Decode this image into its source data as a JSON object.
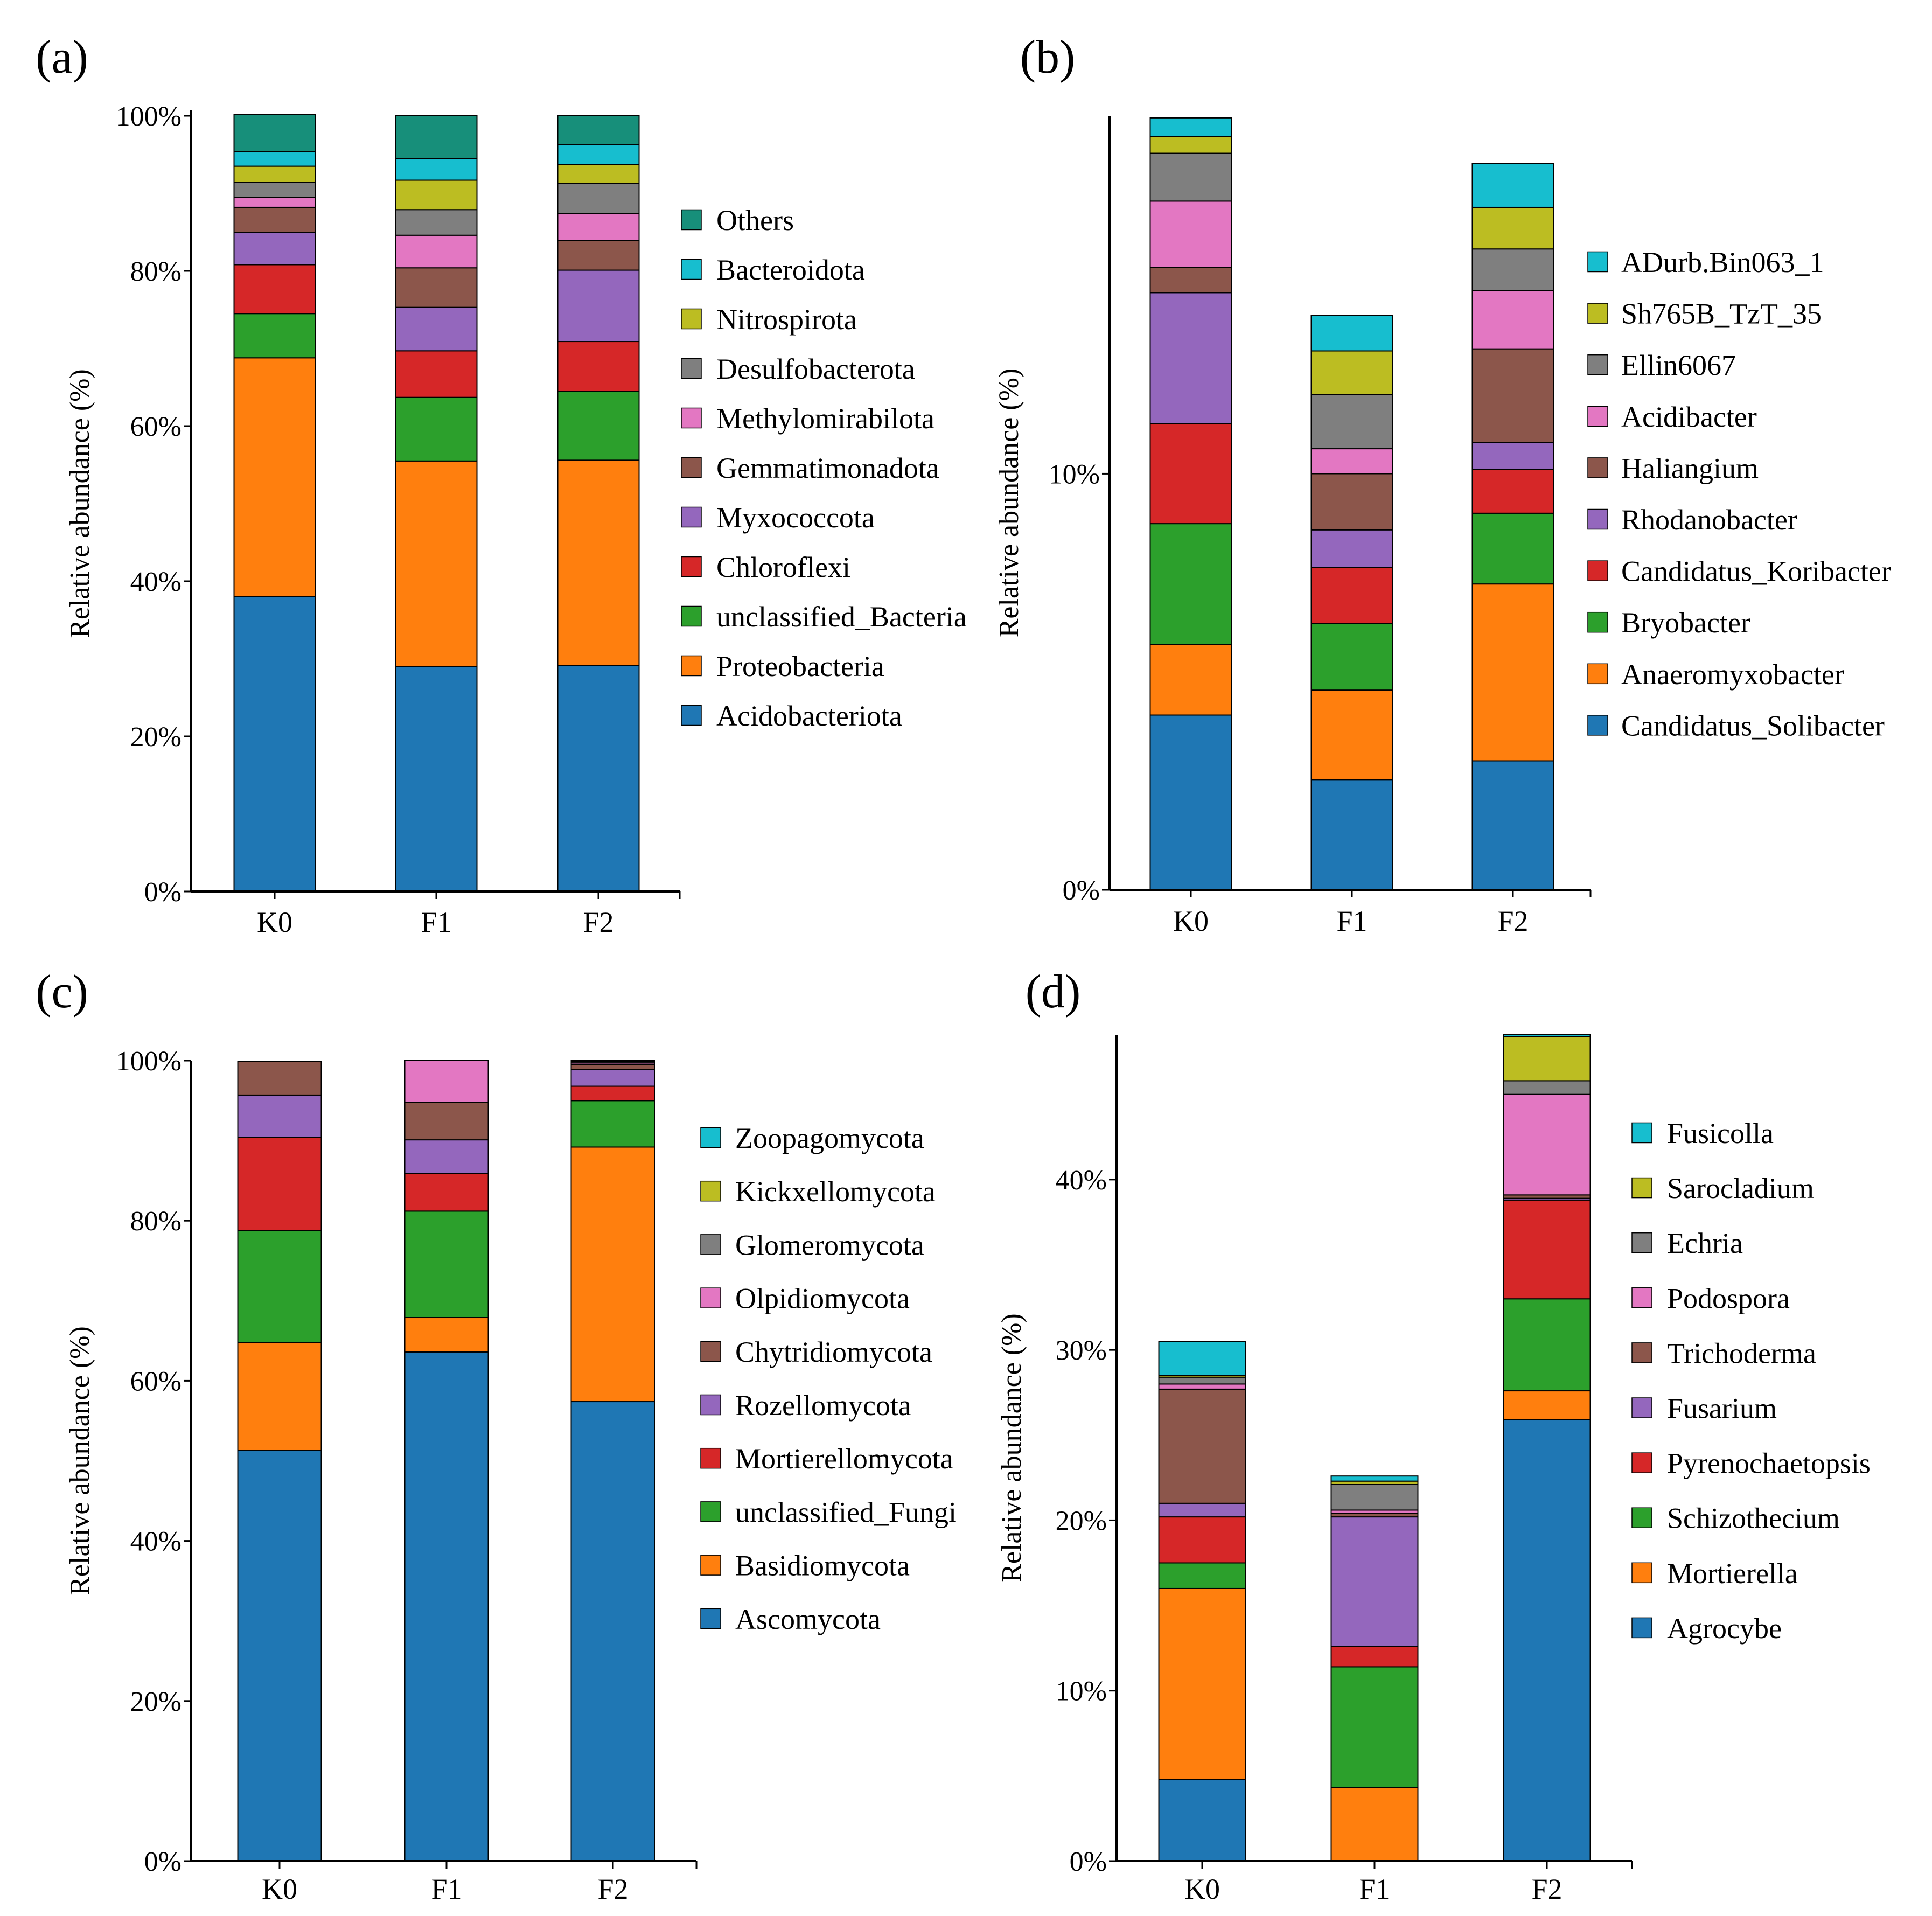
{
  "chart_data": [
    {
      "panel": "(a)",
      "type": "bar",
      "stacked": true,
      "categories": [
        "K0",
        "F1",
        "F2"
      ],
      "ylabel": "Relative abundance (%)",
      "ylim": [
        0,
        100
      ],
      "yticks": [
        0,
        20,
        40,
        60,
        80,
        100
      ],
      "yticklabels": [
        "0%",
        "20%",
        "40%",
        "60%",
        "80%",
        "100%"
      ],
      "legend_position": "right",
      "series": [
        {
          "name": "Acidobacteriota",
          "color": "#1f77b4",
          "values": [
            38.0,
            29.0,
            29.1
          ]
        },
        {
          "name": "Proteobacteria",
          "color": "#ff7f0e",
          "values": [
            30.8,
            26.5,
            26.5
          ]
        },
        {
          "name": "unclassified_Bacteria",
          "color": "#2ca02c",
          "values": [
            5.7,
            8.2,
            8.9
          ]
        },
        {
          "name": "Chloroflexi",
          "color": "#d62728",
          "values": [
            6.3,
            6.0,
            6.4
          ]
        },
        {
          "name": "Myxococcota",
          "color": "#9467bd",
          "values": [
            4.2,
            5.6,
            9.2
          ]
        },
        {
          "name": "Gemmatimonadota",
          "color": "#8c564b",
          "values": [
            3.2,
            5.1,
            3.8
          ]
        },
        {
          "name": "Methylomirabilota",
          "color": "#e377c2",
          "values": [
            1.3,
            4.2,
            3.5
          ]
        },
        {
          "name": "Desulfobacterota",
          "color": "#7f7f7f",
          "values": [
            1.9,
            3.3,
            3.9
          ]
        },
        {
          "name": "Nitrospirota",
          "color": "#bcbd22",
          "values": [
            2.1,
            3.8,
            2.4
          ]
        },
        {
          "name": "Bacteroidota",
          "color": "#17becf",
          "values": [
            1.9,
            2.8,
            2.6
          ]
        },
        {
          "name": "Others",
          "color": "#178f7a",
          "values": [
            4.8,
            5.5,
            3.7
          ]
        }
      ]
    },
    {
      "panel": "(b)",
      "type": "bar",
      "stacked": true,
      "categories": [
        "K0",
        "F1",
        "F2"
      ],
      "ylabel": "Relative abundance (%)",
      "ylim": [
        0,
        18.6
      ],
      "yticks": [
        0,
        10
      ],
      "yticklabels": [
        "0%",
        "10%"
      ],
      "legend_position": "right",
      "series": [
        {
          "name": "Candidatus_Solibacter",
          "color": "#1f77b4",
          "values": [
            4.2,
            2.65,
            3.1
          ]
        },
        {
          "name": "Anaeromyxobacter",
          "color": "#ff7f0e",
          "values": [
            1.7,
            2.15,
            4.25
          ]
        },
        {
          "name": "Bryobacter",
          "color": "#2ca02c",
          "values": [
            2.9,
            1.6,
            1.7
          ]
        },
        {
          "name": "Candidatus_Koribacter",
          "color": "#d62728",
          "values": [
            2.4,
            1.35,
            1.05
          ]
        },
        {
          "name": "Rhodanobacter",
          "color": "#9467bd",
          "values": [
            3.15,
            0.9,
            0.65
          ]
        },
        {
          "name": "Haliangium",
          "color": "#8c564b",
          "values": [
            0.6,
            1.35,
            2.25
          ]
        },
        {
          "name": "Acidibacter",
          "color": "#e377c2",
          "values": [
            1.6,
            0.6,
            1.4
          ]
        },
        {
          "name": "Ellin6067",
          "color": "#7f7f7f",
          "values": [
            1.15,
            1.3,
            1.0
          ]
        },
        {
          "name": "Sh765B_TzT_35",
          "color": "#bcbd22",
          "values": [
            0.4,
            1.05,
            1.0
          ]
        },
        {
          "name": "ADurb.Bin063_1",
          "color": "#17becf",
          "values": [
            0.45,
            0.85,
            1.05
          ]
        }
      ]
    },
    {
      "panel": "(c)",
      "type": "bar",
      "stacked": true,
      "categories": [
        "K0",
        "F1",
        "F2"
      ],
      "ylabel": "Relative abundance (%)",
      "ylim": [
        0,
        100
      ],
      "yticks": [
        0,
        20,
        40,
        60,
        80,
        100
      ],
      "yticklabels": [
        "0%",
        "20%",
        "40%",
        "60%",
        "80%",
        "100%"
      ],
      "legend_position": "right",
      "series": [
        {
          "name": "Ascomycota",
          "color": "#1f77b4",
          "values": [
            51.3,
            63.6,
            57.4
          ]
        },
        {
          "name": "Basidiomycota",
          "color": "#ff7f0e",
          "values": [
            13.5,
            4.3,
            31.8
          ]
        },
        {
          "name": "unclassified_Fungi",
          "color": "#2ca02c",
          "values": [
            14.0,
            13.3,
            5.8
          ]
        },
        {
          "name": "Mortierellomycota",
          "color": "#d62728",
          "values": [
            11.6,
            4.7,
            1.8
          ]
        },
        {
          "name": "Rozellomycota",
          "color": "#9467bd",
          "values": [
            5.3,
            4.2,
            2.1
          ]
        },
        {
          "name": "Chytridiomycota",
          "color": "#8c564b",
          "values": [
            4.2,
            4.7,
            0.6
          ]
        },
        {
          "name": "Olpidiomycota",
          "color": "#e377c2",
          "values": [
            0.0,
            5.2,
            0.2
          ]
        },
        {
          "name": "Glomeromycota",
          "color": "#7f7f7f",
          "values": [
            0.0,
            0.0,
            0.15
          ]
        },
        {
          "name": "Kickxellomycota",
          "color": "#bcbd22",
          "values": [
            0.0,
            0.0,
            0.1
          ]
        },
        {
          "name": "Zoopagomycota",
          "color": "#17becf",
          "values": [
            0.0,
            0.0,
            0.05
          ]
        }
      ]
    },
    {
      "panel": "(d)",
      "type": "bar",
      "stacked": true,
      "categories": [
        "K0",
        "F1",
        "F2"
      ],
      "ylabel": "Relative abundance (%)",
      "ylim": [
        0,
        48.5
      ],
      "yticks": [
        0,
        10,
        20,
        30,
        40
      ],
      "yticklabels": [
        "0%",
        "10%",
        "20%",
        "30%",
        "40%"
      ],
      "legend_position": "right",
      "series": [
        {
          "name": "Agrocybe",
          "color": "#1f77b4",
          "values": [
            4.8,
            0.0,
            25.9
          ]
        },
        {
          "name": "Mortierella",
          "color": "#ff7f0e",
          "values": [
            11.2,
            4.3,
            1.7
          ]
        },
        {
          "name": "Schizothecium",
          "color": "#2ca02c",
          "values": [
            1.5,
            7.1,
            5.4
          ]
        },
        {
          "name": "Pyrenochaetopsis",
          "color": "#d62728",
          "values": [
            2.7,
            1.2,
            5.8
          ]
        },
        {
          "name": "Fusarium",
          "color": "#9467bd",
          "values": [
            0.8,
            7.6,
            0.1
          ]
        },
        {
          "name": "Trichoderma",
          "color": "#8c564b",
          "values": [
            6.7,
            0.2,
            0.2
          ]
        },
        {
          "name": "Podospora",
          "color": "#e377c2",
          "values": [
            0.3,
            0.2,
            5.9
          ]
        },
        {
          "name": "Echria",
          "color": "#7f7f7f",
          "values": [
            0.4,
            1.5,
            0.8
          ]
        },
        {
          "name": "Sarocladium",
          "color": "#bcbd22",
          "values": [
            0.1,
            0.2,
            2.6
          ]
        },
        {
          "name": "Fusicolla",
          "color": "#17becf",
          "values": [
            2.0,
            0.3,
            0.1
          ]
        }
      ]
    }
  ]
}
